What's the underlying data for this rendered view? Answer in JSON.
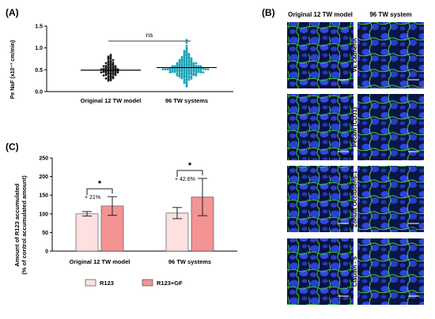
{
  "panels": {
    "A": "(A)",
    "B": "(B)",
    "C": "(C)"
  },
  "chart_data": [
    {
      "panel": "A",
      "type": "scatter",
      "ylabel": "Pe NaF (x10⁻³ cm/min)",
      "ylim": [
        0.0,
        1.5
      ],
      "yticks": [
        "0.0",
        "0.5",
        "1.0",
        "1.5"
      ],
      "categories": [
        "Original 12 TW model",
        "96 TW systems"
      ],
      "series": [
        {
          "color": "#1a1a1a",
          "mean": 0.49,
          "points": [
            0.84,
            0.82,
            0.8,
            0.78,
            0.77,
            0.75,
            0.74,
            0.72,
            0.7,
            0.69,
            0.68,
            0.67,
            0.66,
            0.65,
            0.64,
            0.63,
            0.62,
            0.61,
            0.6,
            0.6,
            0.59,
            0.58,
            0.58,
            0.57,
            0.56,
            0.56,
            0.55,
            0.55,
            0.54,
            0.54,
            0.53,
            0.53,
            0.52,
            0.52,
            0.51,
            0.51,
            0.5,
            0.5,
            0.5,
            0.49,
            0.49,
            0.48,
            0.48,
            0.47,
            0.47,
            0.46,
            0.46,
            0.45,
            0.45,
            0.44,
            0.44,
            0.43,
            0.43,
            0.42,
            0.42,
            0.41,
            0.4,
            0.4,
            0.39,
            0.38,
            0.38,
            0.37,
            0.36,
            0.35,
            0.34,
            0.33,
            0.32,
            0.31,
            0.3,
            0.29,
            0.28,
            0.26,
            0.25
          ]
        },
        {
          "color": "#1ea2b8",
          "mean": 0.55,
          "points": [
            1.18,
            1.12,
            1.05,
            1.0,
            0.97,
            0.95,
            0.93,
            0.91,
            0.9,
            0.88,
            0.87,
            0.86,
            0.85,
            0.84,
            0.83,
            0.82,
            0.81,
            0.8,
            0.79,
            0.78,
            0.78,
            0.77,
            0.76,
            0.76,
            0.75,
            0.74,
            0.74,
            0.73,
            0.72,
            0.72,
            0.71,
            0.71,
            0.7,
            0.7,
            0.69,
            0.69,
            0.68,
            0.68,
            0.67,
            0.67,
            0.66,
            0.66,
            0.65,
            0.65,
            0.65,
            0.64,
            0.64,
            0.63,
            0.63,
            0.63,
            0.62,
            0.62,
            0.62,
            0.61,
            0.61,
            0.61,
            0.6,
            0.6,
            0.6,
            0.59,
            0.59,
            0.59,
            0.58,
            0.58,
            0.58,
            0.58,
            0.57,
            0.57,
            0.57,
            0.57,
            0.56,
            0.56,
            0.56,
            0.56,
            0.55,
            0.55,
            0.55,
            0.55,
            0.55,
            0.54,
            0.54,
            0.54,
            0.54,
            0.54,
            0.53,
            0.53,
            0.53,
            0.53,
            0.53,
            0.52,
            0.52,
            0.52,
            0.52,
            0.52,
            0.51,
            0.51,
            0.51,
            0.51,
            0.51,
            0.5,
            0.5,
            0.5,
            0.5,
            0.5,
            0.49,
            0.49,
            0.49,
            0.49,
            0.49,
            0.48,
            0.48,
            0.48,
            0.48,
            0.47,
            0.47,
            0.47,
            0.47,
            0.46,
            0.46,
            0.46,
            0.46,
            0.45,
            0.45,
            0.45,
            0.45,
            0.44,
            0.44,
            0.44,
            0.43,
            0.43,
            0.43,
            0.42,
            0.42,
            0.42,
            0.41,
            0.41,
            0.41,
            0.4,
            0.4,
            0.4,
            0.39,
            0.39,
            0.38,
            0.38,
            0.37,
            0.37,
            0.36,
            0.36,
            0.35,
            0.35,
            0.34,
            0.34,
            0.33,
            0.33,
            0.32,
            0.31,
            0.3,
            0.29,
            0.28,
            0.27,
            0.26,
            0.24,
            0.22,
            0.2,
            0.18,
            0.15,
            0.12
          ]
        }
      ],
      "annotation": "ns"
    },
    {
      "panel": "C",
      "type": "bar",
      "ylabel": "Amount of R123 accumulated",
      "ylabel2": "(% of control accumulated amount)",
      "ylim": [
        0,
        250
      ],
      "yticks": [
        "0",
        "50",
        "100",
        "150",
        "200",
        "250"
      ],
      "categories": [
        "Original 12 TW model",
        "96 TW systems"
      ],
      "series": [
        {
          "name": "R123",
          "color": "#fde0e0",
          "values": [
            100,
            102
          ],
          "errors": [
            6,
            15
          ]
        },
        {
          "name": "R123+GF",
          "color": "#f49393",
          "values": [
            121,
            145
          ],
          "errors": [
            25,
            50
          ]
        }
      ],
      "annotations": [
        {
          "category": "Original 12 TW model",
          "star": "*",
          "label": "+ 21%"
        },
        {
          "category": "96 TW systems",
          "star": "*",
          "label": "+ 42.6%"
        }
      ],
      "legend_position": "bottom"
    },
    {
      "panel": "B",
      "type": "image-grid",
      "columns": [
        "Original 12 TW model",
        "96 TW system"
      ],
      "rows": [
        "VE cadherin",
        "Pecam (CD31)",
        "Zonula Occludens-1",
        "Claudin - 5"
      ],
      "scale_bar": "25 µm"
    }
  ]
}
